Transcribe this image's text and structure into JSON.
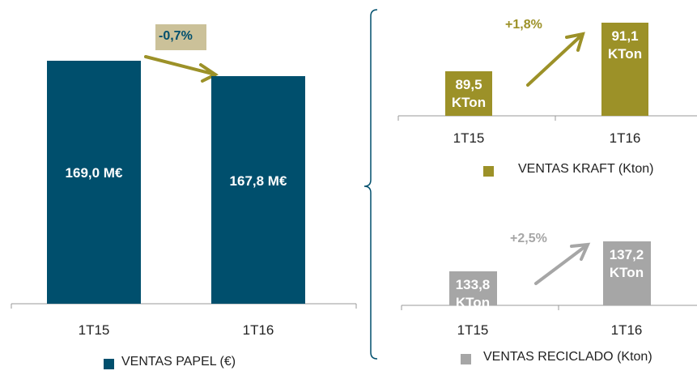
{
  "chart_data": [
    {
      "type": "bar",
      "categories": [
        "1T15",
        "1T16"
      ],
      "series": [
        {
          "name": "VENTAS PAPEL (€)",
          "color": "#004f6d",
          "values": [
            169.0,
            167.8
          ],
          "value_labels": [
            "169,0 M€",
            "167,8 M€"
          ]
        }
      ],
      "ylim": [
        150,
        172.5
      ],
      "annotation": "-0,7%"
    },
    {
      "type": "bar",
      "categories": [
        "1T15",
        "1T16"
      ],
      "series": [
        {
          "name": "VENTAS KRAFT (Kton)",
          "color": "#9c9128",
          "values": [
            89.5,
            91.1
          ],
          "value_labels": [
            "89,5 KTon",
            "91,1 KTon"
          ]
        }
      ],
      "ylim": [
        88,
        91.6
      ],
      "annotation": "+1,8%"
    },
    {
      "type": "bar",
      "categories": [
        "1T15",
        "1T16"
      ],
      "series": [
        {
          "name": "VENTAS RECICLADO (Kton)",
          "color": "#a6a6a6",
          "values": [
            133.8,
            137.2
          ],
          "value_labels": [
            "133,8 KTon",
            "137,2 KTon"
          ]
        }
      ],
      "ylim": [
        130,
        140.6
      ],
      "annotation": "+2,5%"
    }
  ]
}
